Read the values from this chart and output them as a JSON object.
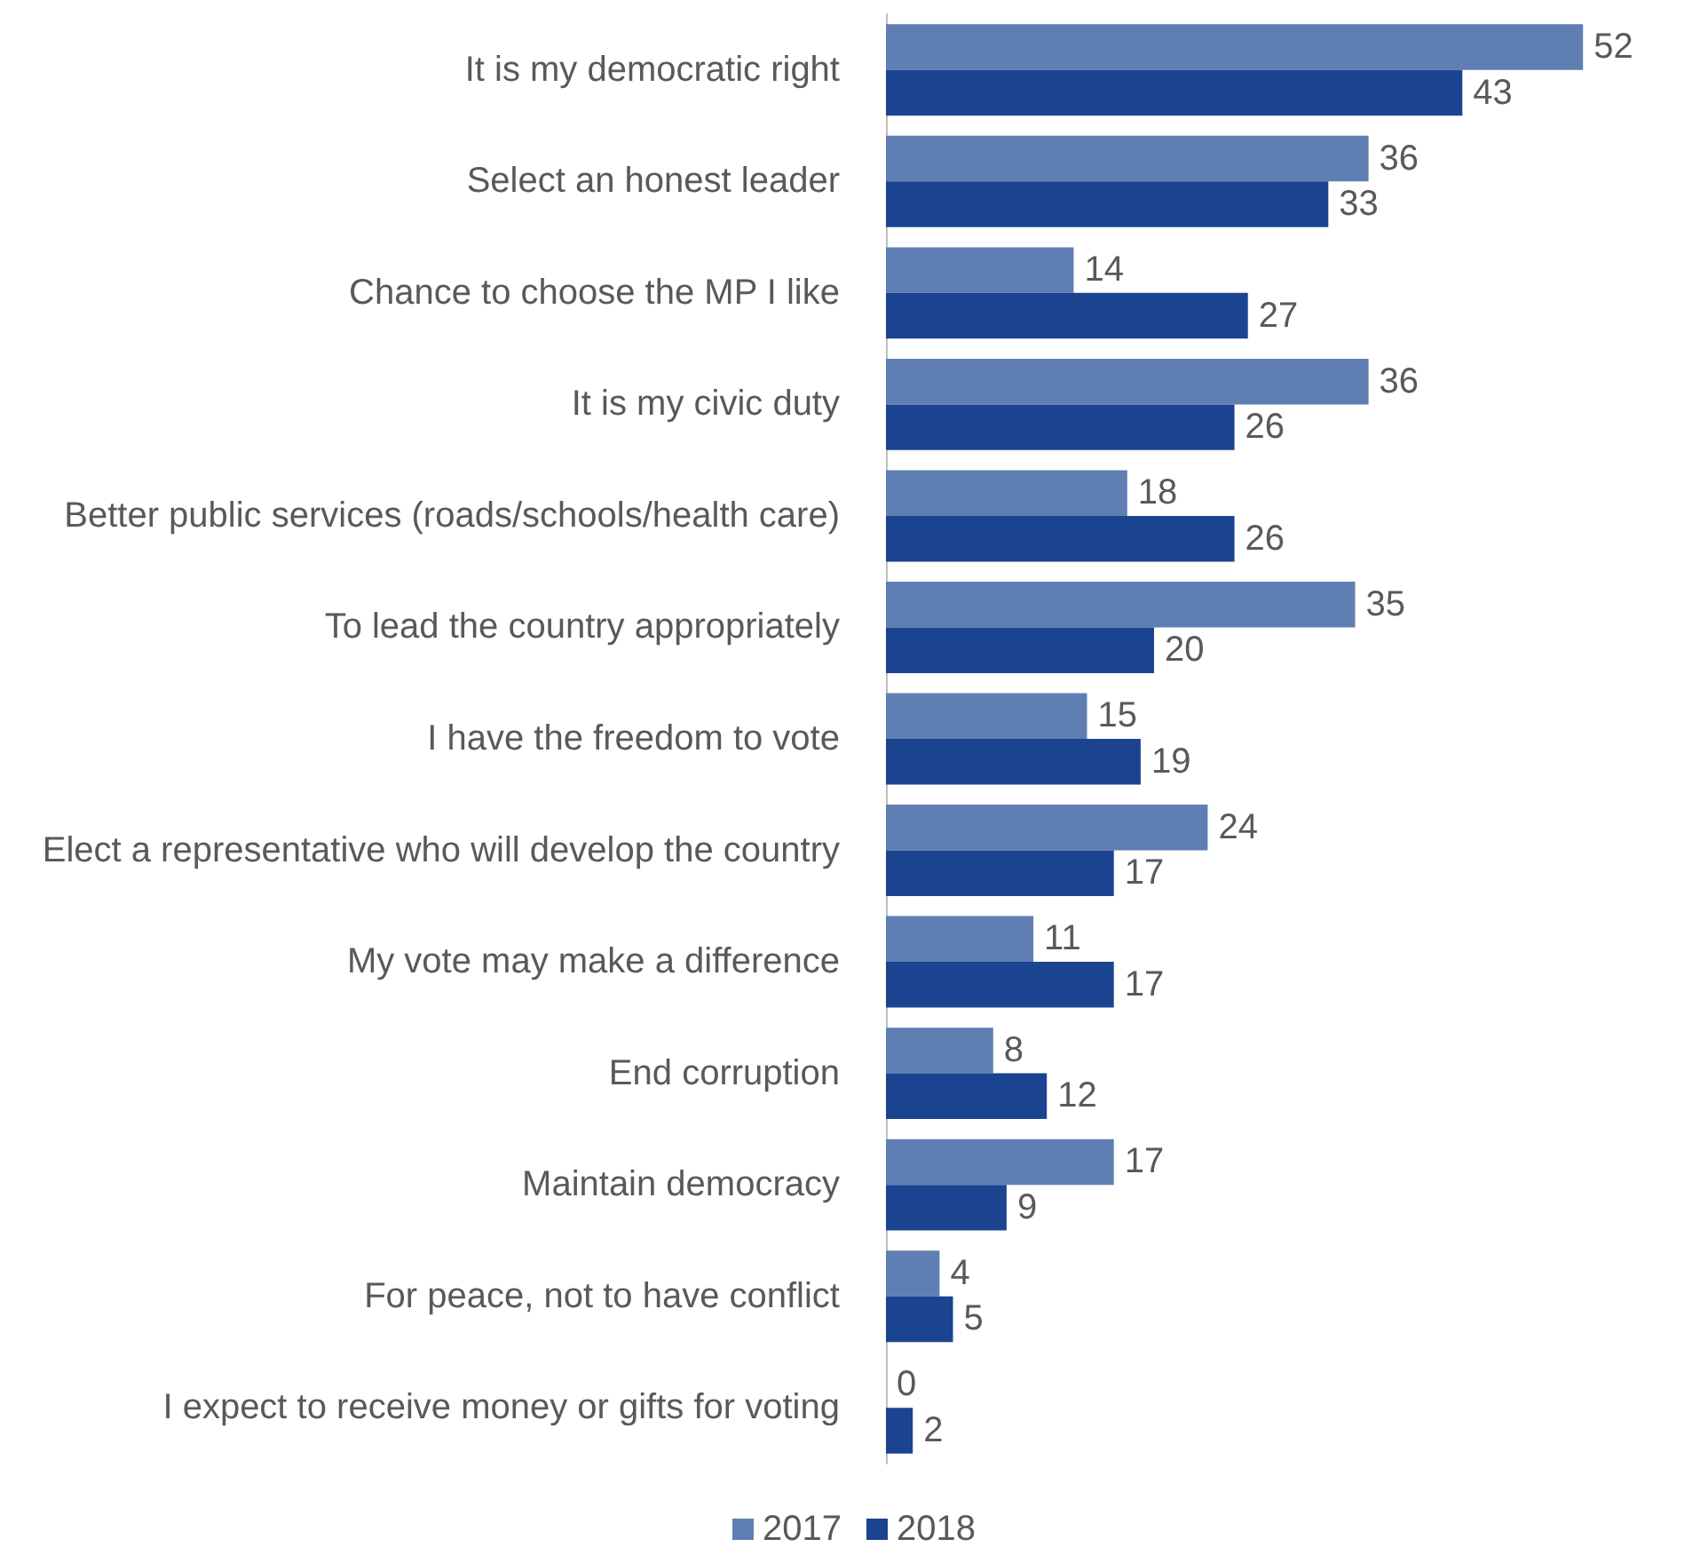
{
  "chart_data": {
    "type": "bar",
    "orientation": "horizontal",
    "categories": [
      "It is my democratic right",
      "Select an honest leader",
      "Chance to choose the MP I like",
      "It is my civic duty",
      "Better public services (roads/schools/health care)",
      "To lead the country appropriately",
      "I have the freedom to vote",
      "Elect a representative who will develop the country",
      "My vote may make a difference",
      "End corruption",
      "Maintain democracy",
      "For peace, not to have conflict",
      "I expect to receive money or gifts for voting"
    ],
    "series": [
      {
        "name": "2017",
        "color": "#5f7eb3",
        "values": [
          52,
          36,
          14,
          36,
          18,
          35,
          15,
          24,
          11,
          8,
          17,
          4,
          0
        ]
      },
      {
        "name": "2018",
        "color": "#1b4490",
        "values": [
          43,
          33,
          27,
          26,
          26,
          20,
          19,
          17,
          17,
          12,
          9,
          5,
          2
        ]
      }
    ],
    "data_labels": true,
    "legend": "bottom",
    "tick_labels": "y"
  }
}
